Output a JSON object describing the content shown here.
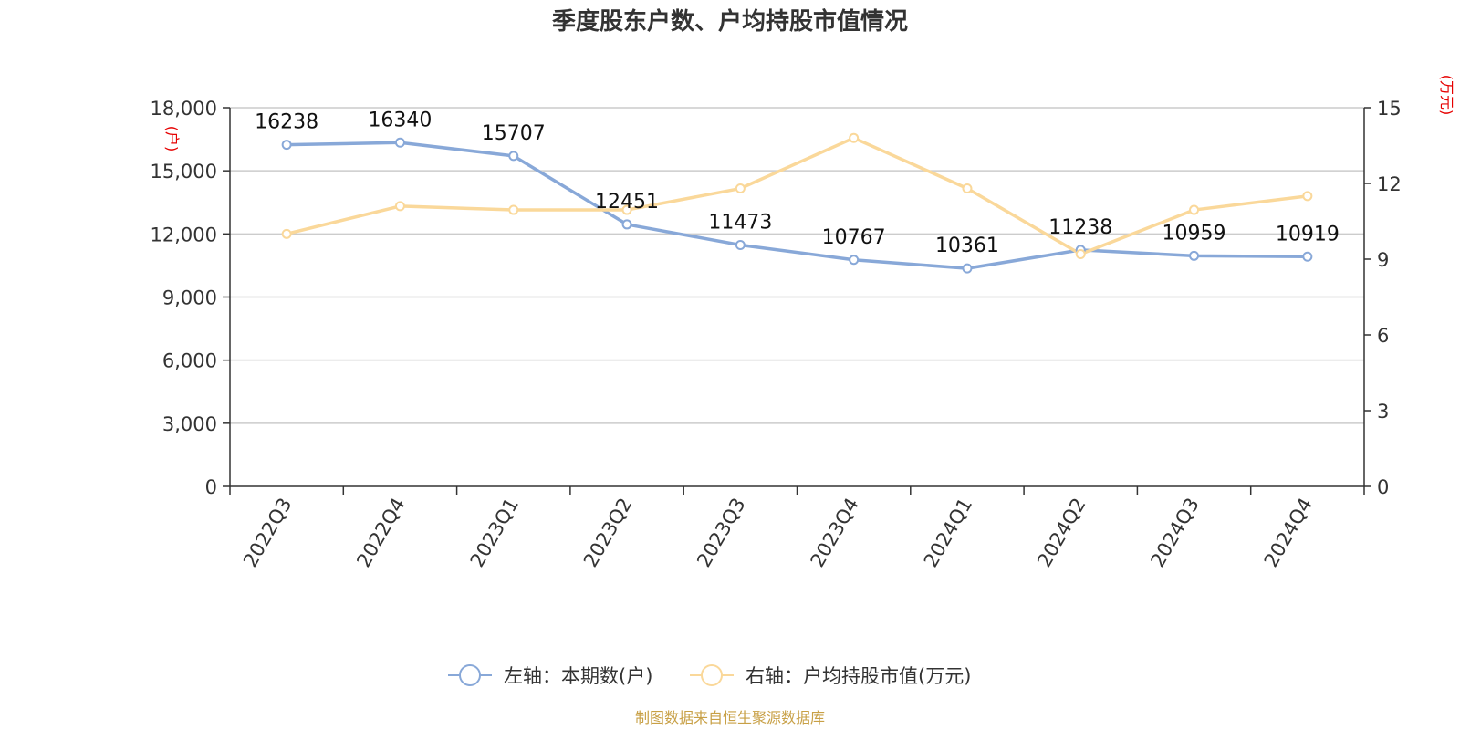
{
  "chart_data": {
    "type": "line",
    "title": "季度股东户数、户均持股市值情况",
    "categories": [
      "2022Q3",
      "2022Q4",
      "2023Q1",
      "2023Q2",
      "2023Q3",
      "2023Q4",
      "2024Q1",
      "2024Q2",
      "2024Q3",
      "2024Q4"
    ],
    "series": [
      {
        "name": "左轴：本期数(户)",
        "axis": "left",
        "color": "#88a8d8",
        "values": [
          16238,
          16340,
          15707,
          12451,
          11473,
          10767,
          10361,
          11238,
          10959,
          10919
        ],
        "labels": [
          "16238",
          "16340",
          "15707",
          "12451",
          "11473",
          "10767",
          "10361",
          "11238",
          "10959",
          "10919"
        ]
      },
      {
        "name": "右轴：户均持股市值(万元)",
        "axis": "right",
        "color": "#fad89a",
        "values": [
          10.0,
          11.1,
          10.95,
          10.95,
          11.8,
          13.8,
          11.8,
          9.2,
          10.95,
          11.5
        ]
      }
    ],
    "left_axis": {
      "unit_label": "(户)",
      "ylim": [
        0,
        18000
      ],
      "ticks": [
        0,
        3000,
        6000,
        9000,
        12000,
        15000,
        18000
      ],
      "tick_labels": [
        "0",
        "3,000",
        "6,000",
        "9,000",
        "12,000",
        "15,000",
        "18,000"
      ]
    },
    "right_axis": {
      "unit_label": "(万元)",
      "ylim": [
        0,
        15
      ],
      "ticks": [
        0,
        3,
        6,
        9,
        12,
        15
      ],
      "tick_labels": [
        "0",
        "3",
        "6",
        "9",
        "12",
        "15"
      ]
    },
    "grid": true,
    "legend_position": "bottom",
    "source": "制图数据来自恒生聚源数据库"
  }
}
